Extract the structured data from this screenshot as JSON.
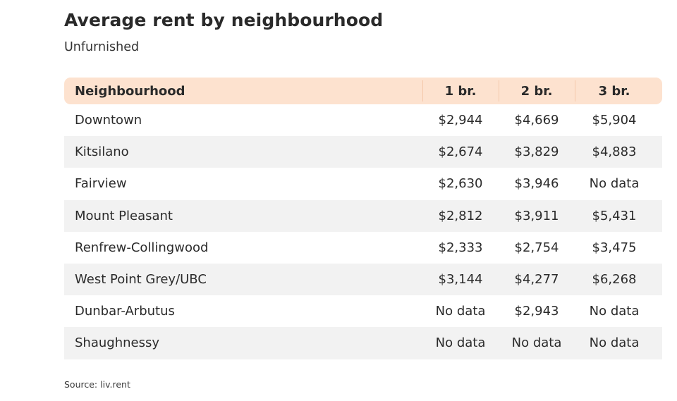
{
  "chart_data": {
    "type": "table",
    "title": "Average rent by neighbourhood",
    "subtitle": "Unfurnished",
    "columns": [
      "Neighbourhood",
      "1 br.",
      "2 br.",
      "3 br."
    ],
    "rows": [
      [
        "Downtown",
        "$2,944",
        "$4,669",
        "$5,904"
      ],
      [
        "Kitsilano",
        "$2,674",
        "$3,829",
        "$4,883"
      ],
      [
        "Fairview",
        "$2,630",
        "$3,946",
        "No data"
      ],
      [
        "Mount Pleasant",
        "$2,812",
        "$3,911",
        "$5,431"
      ],
      [
        "Renfrew-Collingwood",
        "$2,333",
        "$2,754",
        "$3,475"
      ],
      [
        "West Point Grey/UBC",
        "$3,144",
        "$4,277",
        "$6,268"
      ],
      [
        "Dunbar-Arbutus",
        "No data",
        "$2,943",
        "No data"
      ],
      [
        "Shaughnessy",
        "No data",
        "No data",
        "No data"
      ]
    ],
    "source": "Source: liv.rent",
    "header_color": "#fde2cf",
    "stripe_color": "#f2f2f2"
  }
}
